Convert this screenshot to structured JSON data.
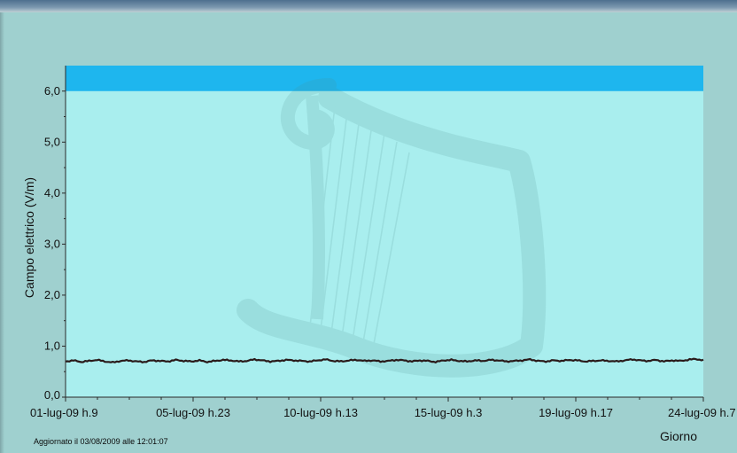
{
  "colors": {
    "background": "#9fd0cf",
    "plot_area": "#a9eeee",
    "limit_band": "#1eb6ee",
    "series_line": "#2a1a1a",
    "series_highlight": "#c0392b"
  },
  "footer": {
    "updated_text": "Aggiornato il 03/08/2009 alle 12:01:07"
  },
  "chart_data": {
    "type": "line",
    "title": "",
    "xlabel": "Giorno",
    "ylabel": "Campo elettrico (V/m)",
    "ylim": [
      0,
      6.5
    ],
    "grid": false,
    "y_ticks": [
      0,
      1,
      2,
      3,
      4,
      5,
      6
    ],
    "y_tick_labels": [
      "0,0",
      "1,0",
      "2,0",
      "3,0",
      "4,0",
      "5,0",
      "6,0"
    ],
    "x_tick_labels": [
      "01-lug-09 h.9",
      "05-lug-09 h.23",
      "10-lug-09 h.13",
      "15-lug-09 h.3",
      "19-lug-09 h.17",
      "24-lug-09 h.7"
    ],
    "limit_band": {
      "from": 6.0,
      "to": 6.5
    },
    "series": [
      {
        "values": [
          0.7,
          0.72,
          0.69,
          0.71,
          0.73,
          0.7,
          0.68,
          0.71,
          0.72,
          0.7,
          0.69,
          0.72,
          0.71,
          0.7,
          0.73,
          0.71,
          0.7,
          0.72,
          0.69,
          0.71,
          0.73,
          0.72,
          0.7,
          0.71,
          0.74,
          0.72,
          0.7,
          0.71,
          0.73,
          0.72,
          0.71,
          0.7,
          0.72,
          0.74,
          0.71,
          0.7,
          0.72,
          0.73,
          0.71,
          0.72,
          0.7,
          0.71,
          0.73,
          0.72,
          0.7,
          0.72,
          0.71,
          0.69,
          0.72,
          0.73,
          0.71,
          0.7,
          0.72,
          0.71,
          0.73,
          0.72,
          0.7,
          0.71,
          0.72,
          0.74,
          0.71,
          0.7,
          0.72,
          0.71,
          0.73,
          0.72,
          0.7,
          0.71,
          0.72,
          0.71,
          0.7,
          0.72,
          0.74,
          0.72,
          0.71,
          0.73,
          0.7,
          0.72,
          0.71,
          0.73,
          0.75,
          0.72
        ]
      }
    ]
  }
}
